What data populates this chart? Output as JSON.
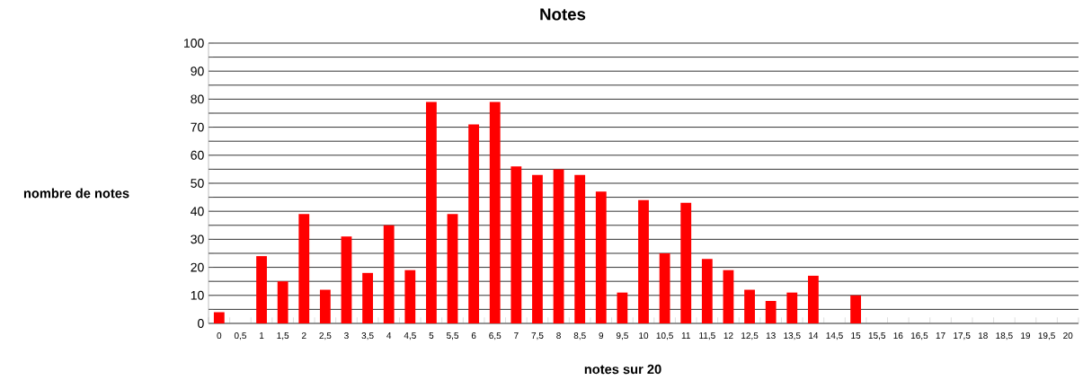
{
  "chart_data": {
    "type": "bar",
    "title": "Notes",
    "xlabel": "notes sur 20",
    "ylabel": "nombre de notes",
    "categories": [
      "0",
      "0,5",
      "1",
      "1,5",
      "2",
      "2,5",
      "3",
      "3,5",
      "4",
      "4,5",
      "5",
      "5,5",
      "6",
      "6,5",
      "7",
      "7,5",
      "8",
      "8,5",
      "9",
      "9,5",
      "10",
      "10,5",
      "11",
      "11,5",
      "12",
      "12,5",
      "13",
      "13,5",
      "14",
      "14,5",
      "15",
      "15,5",
      "16",
      "16,5",
      "17",
      "17,5",
      "18",
      "18,5",
      "19",
      "19,5",
      "20"
    ],
    "values": [
      4,
      0,
      24,
      15,
      39,
      12,
      31,
      18,
      35,
      19,
      79,
      39,
      71,
      79,
      56,
      53,
      55,
      53,
      47,
      11,
      44,
      25,
      43,
      23,
      19,
      12,
      8,
      11,
      17,
      0,
      10,
      0,
      0,
      0,
      0,
      0,
      0,
      0,
      0,
      0,
      0
    ],
    "color": "#ff0000",
    "ylim": [
      0,
      100
    ],
    "yticks": [
      0,
      {
        "value": 5,
        "label": null
      },
      10,
      {
        "value": 15,
        "label": null
      },
      20,
      {
        "value": 25,
        "label": null
      },
      30,
      {
        "value": 35,
        "label": null
      },
      40,
      {
        "value": 45,
        "label": null
      },
      50,
      {
        "value": 55,
        "label": null
      },
      60,
      {
        "value": 65,
        "label": null
      },
      70,
      {
        "value": 75,
        "label": null
      },
      80,
      {
        "value": 85,
        "label": null
      },
      90,
      {
        "value": 95,
        "label": null
      },
      100
    ],
    "grid": "y"
  }
}
